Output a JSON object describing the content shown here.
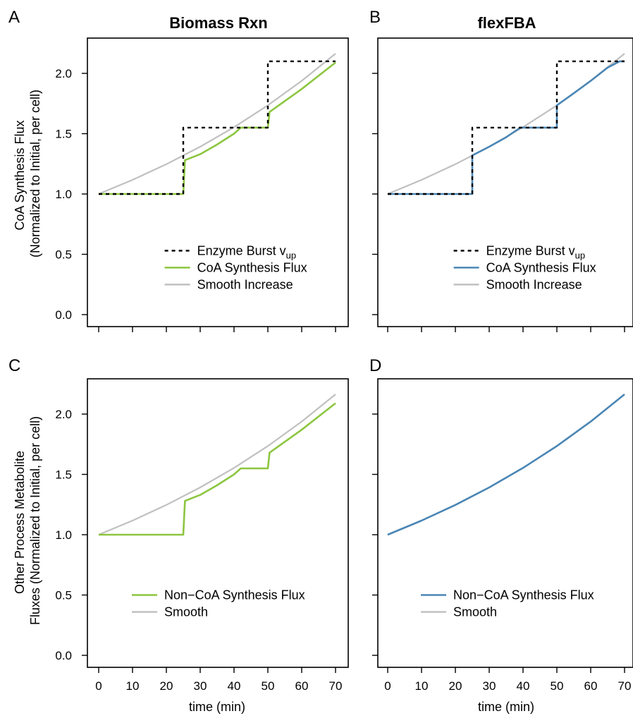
{
  "figure": {
    "ylabels": [
      {
        "line1": "CoA Synthesis Flux",
        "line2": "(Normalized to Initial, per cell)"
      },
      {
        "line1": "Other Process Metabolite",
        "line2": "Fluxes (Normalized to Initial, per cell)"
      }
    ],
    "column_titles": [
      "Biomass Rxn",
      "flexFBA"
    ]
  },
  "colors": {
    "green": "#8cc63f",
    "blue": "#4a86b5",
    "gray": "#c0c0c0",
    "black": "#000000"
  },
  "chart_data": [
    {
      "panel": "A",
      "type": "line",
      "title": "Biomass Rxn",
      "xlabel": "",
      "ylabel": "CoA Synthesis Flux (Normalized to Initial, per cell)",
      "xlim": [
        0,
        70
      ],
      "ylim": [
        0,
        2.2
      ],
      "yticks": [
        "0.0",
        "0.5",
        "1.0",
        "1.5",
        "2.0"
      ],
      "xticks": [],
      "legend_position": "bottom-right",
      "series": [
        {
          "name": "Enzyme Burst v",
          "name_sub": "up",
          "style": "dashed",
          "color": "#000000",
          "x": [
            0,
            25,
            25,
            50,
            50,
            70
          ],
          "y": [
            1.0,
            1.0,
            1.55,
            1.55,
            2.1,
            2.1
          ]
        },
        {
          "name": "CoA Synthesis Flux",
          "style": "solid",
          "color": "#8cc63f",
          "x": [
            0,
            25,
            25.5,
            30,
            35,
            40,
            42,
            50,
            50.5,
            55,
            60,
            65,
            70
          ],
          "y": [
            1.0,
            1.0,
            1.28,
            1.33,
            1.41,
            1.5,
            1.55,
            1.55,
            1.68,
            1.77,
            1.87,
            1.98,
            2.09
          ]
        },
        {
          "name": "Smooth Increase",
          "style": "solid",
          "color": "#c0c0c0",
          "x": [
            0,
            10,
            20,
            30,
            40,
            50,
            60,
            70
          ],
          "y": [
            1.0,
            1.117,
            1.247,
            1.392,
            1.554,
            1.735,
            1.938,
            2.164
          ]
        }
      ]
    },
    {
      "panel": "B",
      "type": "line",
      "title": "flexFBA",
      "xlabel": "",
      "ylabel": "",
      "xlim": [
        0,
        70
      ],
      "ylim": [
        0,
        2.2
      ],
      "yticks": [],
      "xticks": [],
      "legend_position": "bottom-right",
      "series": [
        {
          "name": "Enzyme Burst v",
          "name_sub": "up",
          "style": "dashed",
          "color": "#000000",
          "x": [
            0,
            25,
            25,
            50,
            50,
            70
          ],
          "y": [
            1.0,
            1.0,
            1.55,
            1.55,
            2.1,
            2.1
          ]
        },
        {
          "name": "CoA Synthesis Flux",
          "style": "solid",
          "color": "#4a86b5",
          "x": [
            0,
            25,
            25,
            30,
            35,
            39.2,
            50,
            50,
            55,
            60,
            65,
            68.6,
            70
          ],
          "y": [
            1.0,
            1.0,
            1.32,
            1.392,
            1.47,
            1.55,
            1.55,
            1.735,
            1.835,
            1.938,
            2.048,
            2.1,
            2.1
          ]
        },
        {
          "name": "Smooth Increase",
          "style": "solid",
          "color": "#c0c0c0",
          "x": [
            0,
            10,
            20,
            30,
            40,
            50,
            60,
            70
          ],
          "y": [
            1.0,
            1.117,
            1.247,
            1.392,
            1.554,
            1.735,
            1.938,
            2.164
          ]
        }
      ]
    },
    {
      "panel": "C",
      "type": "line",
      "title": "",
      "xlabel": "time (min)",
      "ylabel": "Other Process Metabolite Fluxes (Normalized to Initial, per cell)",
      "xlim": [
        0,
        70
      ],
      "ylim": [
        0,
        2.2
      ],
      "yticks": [
        "0.0",
        "0.5",
        "1.0",
        "1.5",
        "2.0"
      ],
      "xticks": [
        "0",
        "10",
        "20",
        "30",
        "40",
        "50",
        "60",
        "70"
      ],
      "legend_position": "bottom-right",
      "series": [
        {
          "name": "Non−CoA Synthesis Flux",
          "style": "solid",
          "color": "#8cc63f",
          "x": [
            0,
            25,
            25.5,
            30,
            35,
            40,
            42,
            50,
            50.5,
            55,
            60,
            65,
            70
          ],
          "y": [
            1.0,
            1.0,
            1.28,
            1.33,
            1.41,
            1.5,
            1.55,
            1.55,
            1.68,
            1.77,
            1.87,
            1.98,
            2.09
          ]
        },
        {
          "name": "Smooth",
          "style": "solid",
          "color": "#c0c0c0",
          "x": [
            0,
            10,
            20,
            30,
            40,
            50,
            60,
            70
          ],
          "y": [
            1.0,
            1.117,
            1.247,
            1.392,
            1.554,
            1.735,
            1.938,
            2.164
          ]
        }
      ]
    },
    {
      "panel": "D",
      "type": "line",
      "title": "",
      "xlabel": "time (min)",
      "ylabel": "",
      "xlim": [
        0,
        70
      ],
      "ylim": [
        0,
        2.2
      ],
      "yticks": [],
      "xticks": [
        "0",
        "10",
        "20",
        "30",
        "40",
        "50",
        "60",
        "70"
      ],
      "legend_position": "bottom-right",
      "series": [
        {
          "name": "Smooth",
          "style": "solid",
          "color": "#c0c0c0",
          "x": [
            0,
            10,
            20,
            30,
            40,
            50,
            60,
            70
          ],
          "y": [
            1.0,
            1.117,
            1.247,
            1.392,
            1.554,
            1.735,
            1.938,
            2.164
          ]
        },
        {
          "name": "Non−CoA Synthesis Flux",
          "style": "solid",
          "color": "#4a86b5",
          "x": [
            0,
            10,
            20,
            30,
            40,
            50,
            60,
            70
          ],
          "y": [
            1.0,
            1.117,
            1.247,
            1.392,
            1.554,
            1.735,
            1.938,
            2.164
          ]
        }
      ]
    }
  ]
}
